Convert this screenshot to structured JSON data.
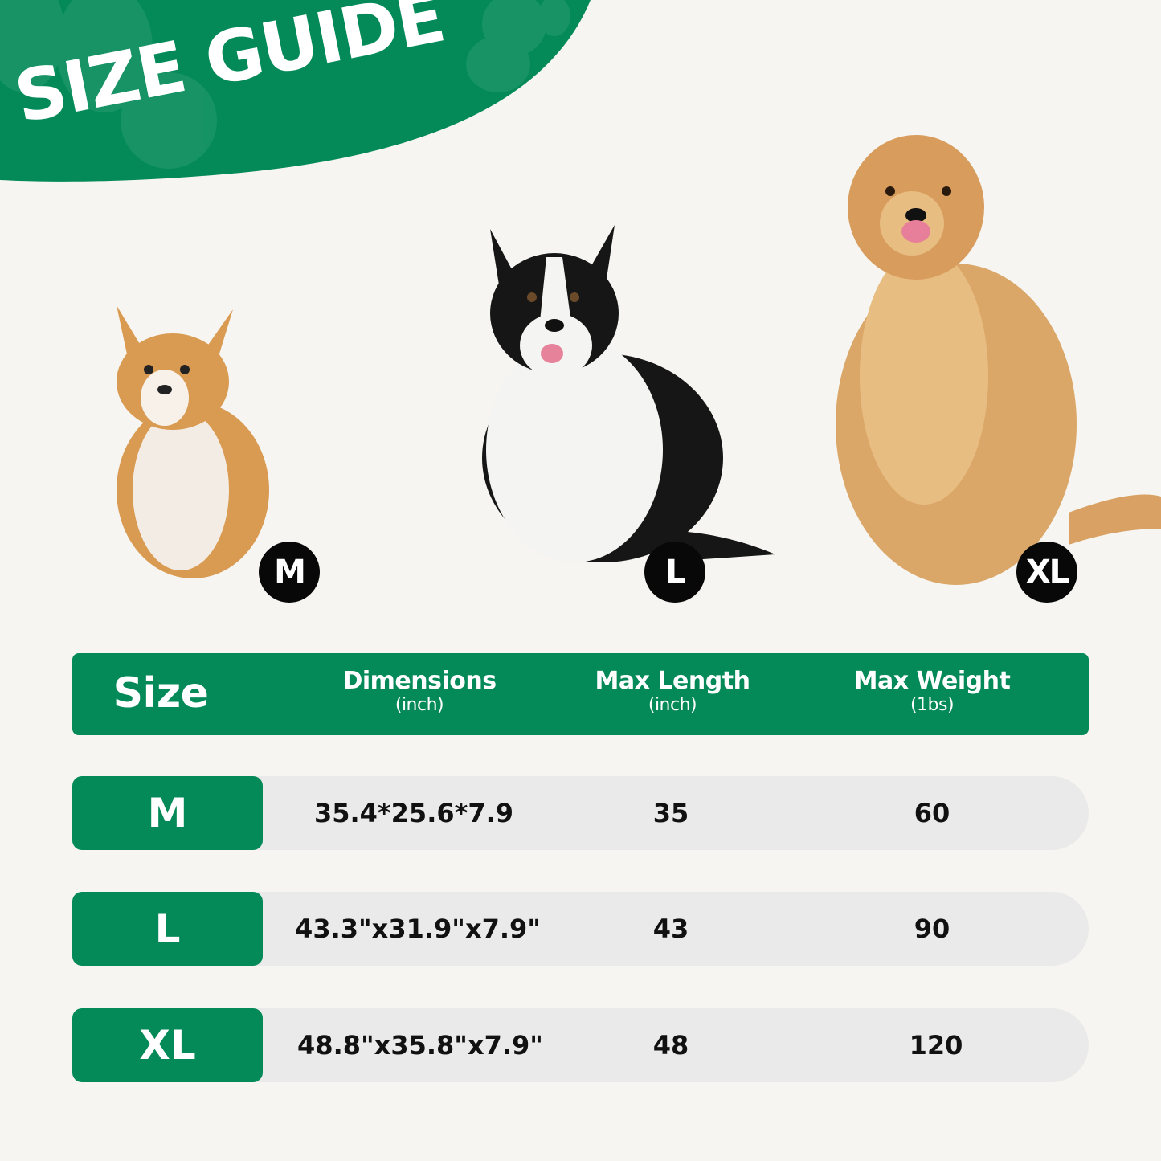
{
  "title": "SIZE GUIDE",
  "colors": {
    "brand_green": "#038a58",
    "background": "#f6f5f1",
    "row_background": "#eaeaea",
    "badge": "#080808"
  },
  "dogs": [
    {
      "size": "M",
      "breed_image": "corgi"
    },
    {
      "size": "L",
      "breed_image": "border-collie"
    },
    {
      "size": "XL",
      "breed_image": "golden-retriever"
    }
  ],
  "table": {
    "headers": [
      {
        "label": "Size",
        "unit": ""
      },
      {
        "label": "Dimensions",
        "unit": "(inch)"
      },
      {
        "label": "Max Length",
        "unit": "(inch)"
      },
      {
        "label": "Max Weight",
        "unit": "(1bs)"
      }
    ],
    "rows": [
      {
        "size": "M",
        "dimensions": "35.4*25.6*7.9",
        "max_length": "35",
        "max_weight": "60"
      },
      {
        "size": "L",
        "dimensions": "43.3\"x31.9\"x7.9\"",
        "max_length": "43",
        "max_weight": "90"
      },
      {
        "size": "XL",
        "dimensions": "48.8\"x35.8\"x7.9\"",
        "max_length": "48",
        "max_weight": "120"
      }
    ]
  }
}
